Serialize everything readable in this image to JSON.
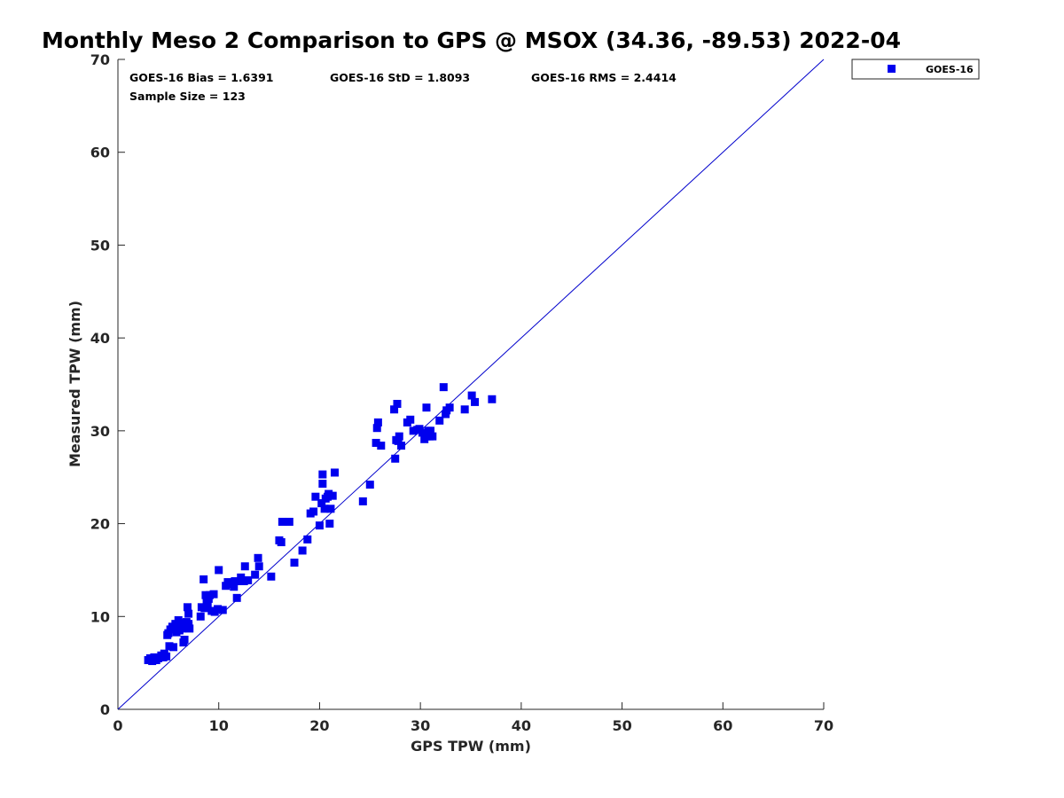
{
  "chart_data": {
    "type": "scatter",
    "title": "Monthly Meso 2 Comparison to GPS @ MSOX (34.36, -89.53) 2022-04",
    "xlabel": "GPS TPW (mm)",
    "ylabel": "Measured TPW (mm)",
    "xlim": [
      0,
      70
    ],
    "ylim": [
      0,
      70
    ],
    "x_ticks": [
      "0",
      "10",
      "20",
      "30",
      "40",
      "50",
      "60",
      "70"
    ],
    "y_ticks": [
      "0",
      "10",
      "20",
      "30",
      "40",
      "50",
      "60",
      "70"
    ],
    "grid": false,
    "legend_position": "outside-top-right",
    "stats": {
      "bias": "GOES-16 Bias = 1.6391",
      "std": "GOES-16 StD = 1.8093",
      "rms": "GOES-16 RMS = 2.4414",
      "sample": "Sample Size = 123"
    },
    "reference_line": {
      "label": "1:1",
      "from": [
        0,
        0
      ],
      "to": [
        70,
        70
      ],
      "color": "#0000cc"
    },
    "series": [
      {
        "name": "GOES-16",
        "color": "#0000ee",
        "marker": "square",
        "points": [
          [
            3.0,
            5.3
          ],
          [
            3.2,
            5.5
          ],
          [
            3.4,
            5.2
          ],
          [
            3.6,
            5.6
          ],
          [
            3.8,
            5.3
          ],
          [
            4.0,
            5.5
          ],
          [
            4.3,
            5.8
          ],
          [
            4.5,
            5.6
          ],
          [
            4.6,
            6.0
          ],
          [
            4.8,
            5.7
          ],
          [
            4.9,
            8.0
          ],
          [
            5.0,
            8.2
          ],
          [
            5.1,
            6.8
          ],
          [
            5.2,
            8.6
          ],
          [
            5.4,
            8.9
          ],
          [
            5.5,
            6.7
          ],
          [
            5.7,
            9.2
          ],
          [
            5.8,
            8.3
          ],
          [
            5.9,
            9.0
          ],
          [
            6.0,
            9.6
          ],
          [
            6.2,
            8.9
          ],
          [
            6.3,
            9.3
          ],
          [
            6.4,
            8.7
          ],
          [
            6.5,
            7.2
          ],
          [
            6.6,
            7.5
          ],
          [
            6.7,
            8.8
          ],
          [
            6.8,
            9.4
          ],
          [
            6.9,
            11.0
          ],
          [
            7.0,
            10.3
          ],
          [
            7.0,
            9.0
          ],
          [
            7.1,
            8.7
          ],
          [
            8.2,
            10.0
          ],
          [
            8.3,
            11.0
          ],
          [
            8.5,
            14.0
          ],
          [
            8.6,
            10.9
          ],
          [
            8.7,
            12.3
          ],
          [
            8.8,
            11.6
          ],
          [
            8.9,
            11.2
          ],
          [
            9.1,
            12.3
          ],
          [
            9.3,
            10.6
          ],
          [
            9.5,
            12.4
          ],
          [
            9.6,
            10.5
          ],
          [
            9.9,
            10.8
          ],
          [
            10.0,
            15.0
          ],
          [
            10.4,
            10.7
          ],
          [
            10.7,
            13.3
          ],
          [
            10.9,
            13.7
          ],
          [
            11.3,
            13.5
          ],
          [
            11.6,
            13.8
          ],
          [
            11.8,
            12.0
          ],
          [
            12.0,
            13.8
          ],
          [
            12.2,
            14.2
          ],
          [
            12.5,
            13.8
          ],
          [
            12.6,
            15.4
          ],
          [
            12.9,
            13.9
          ],
          [
            13.6,
            14.5
          ],
          [
            13.9,
            16.3
          ],
          [
            14.0,
            15.4
          ],
          [
            15.2,
            14.3
          ],
          [
            16.2,
            18.0
          ],
          [
            16.3,
            20.2
          ],
          [
            17.0,
            20.2
          ],
          [
            17.5,
            15.8
          ],
          [
            18.3,
            17.1
          ],
          [
            18.8,
            18.3
          ],
          [
            19.1,
            21.1
          ],
          [
            19.4,
            21.3
          ],
          [
            19.6,
            22.9
          ],
          [
            20.0,
            19.8
          ],
          [
            20.2,
            22.2
          ],
          [
            20.3,
            24.3
          ],
          [
            20.3,
            25.3
          ],
          [
            20.5,
            21.6
          ],
          [
            20.6,
            22.7
          ],
          [
            20.9,
            23.2
          ],
          [
            21.0,
            20.0
          ],
          [
            21.1,
            21.6
          ],
          [
            21.3,
            23.0
          ],
          [
            21.5,
            25.5
          ],
          [
            24.3,
            22.4
          ],
          [
            25.0,
            24.2
          ],
          [
            25.6,
            28.7
          ],
          [
            25.7,
            30.3
          ],
          [
            25.8,
            30.9
          ],
          [
            26.1,
            28.4
          ],
          [
            27.4,
            32.3
          ],
          [
            27.5,
            27.0
          ],
          [
            27.7,
            32.9
          ],
          [
            27.8,
            28.9
          ],
          [
            27.9,
            29.4
          ],
          [
            28.1,
            28.4
          ],
          [
            28.7,
            30.9
          ],
          [
            29.0,
            31.2
          ],
          [
            29.3,
            30.0
          ],
          [
            29.7,
            30.1
          ],
          [
            29.9,
            30.2
          ],
          [
            30.2,
            29.8
          ],
          [
            30.4,
            29.1
          ],
          [
            30.5,
            29.6
          ],
          [
            30.6,
            29.4
          ],
          [
            30.6,
            32.5
          ],
          [
            30.8,
            29.9
          ],
          [
            30.9,
            29.4
          ],
          [
            31.0,
            30.0
          ],
          [
            31.2,
            29.4
          ],
          [
            31.9,
            31.1
          ],
          [
            32.3,
            34.7
          ],
          [
            32.5,
            31.8
          ],
          [
            32.6,
            32.2
          ],
          [
            32.9,
            32.5
          ],
          [
            34.4,
            32.3
          ],
          [
            35.1,
            33.8
          ],
          [
            35.4,
            33.1
          ],
          [
            37.1,
            33.4
          ],
          [
            6.1,
            8.5
          ],
          [
            7.0,
            9.2
          ],
          [
            9.0,
            11.9
          ],
          [
            11.5,
            13.2
          ],
          [
            16.0,
            18.2
          ],
          [
            20.8,
            22.9
          ],
          [
            27.6,
            29.0
          ],
          [
            30.8,
            30.0
          ],
          [
            6.5,
            9.1
          ]
        ]
      }
    ]
  }
}
